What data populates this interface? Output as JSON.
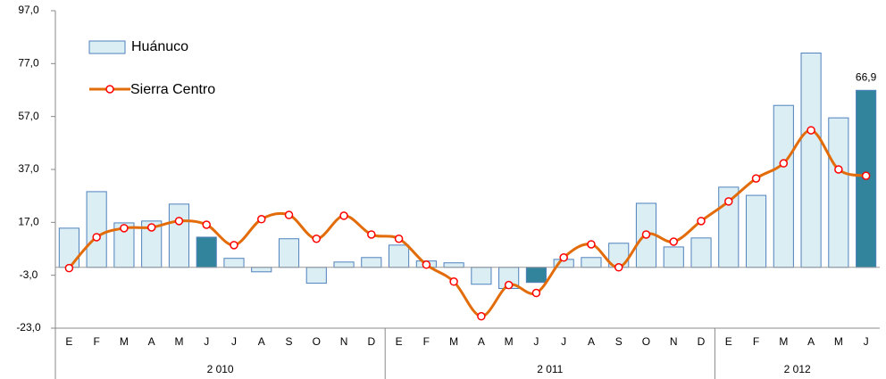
{
  "chart_data": {
    "type": "bar-line",
    "categories": [
      "E",
      "F",
      "M",
      "A",
      "M",
      "J",
      "J",
      "A",
      "S",
      "O",
      "N",
      "D",
      "E",
      "F",
      "M",
      "A",
      "M",
      "J",
      "J",
      "A",
      "S",
      "O",
      "N",
      "D",
      "E",
      "F",
      "M",
      "A",
      "M",
      "J"
    ],
    "groups": [
      "2 010",
      "2 011",
      "2 012"
    ],
    "ylim": [
      -23,
      97
    ],
    "yticks": [
      {
        "value": -23,
        "label": "-23,0"
      },
      {
        "value": -3,
        "label": "-3,0"
      },
      {
        "value": 17,
        "label": "17,0"
      },
      {
        "value": 37,
        "label": "37,0"
      },
      {
        "value": 57,
        "label": "57,0"
      },
      {
        "value": 77,
        "label": "77,0"
      },
      {
        "value": 97,
        "label": "97,0"
      }
    ],
    "legend": "top-left",
    "series": [
      {
        "name": "Huánuco",
        "kind": "bar",
        "color": "#dbeef4",
        "edge": "#4f81bd",
        "colors": [
          "#dbeef4",
          "#dbeef4",
          "#dbeef4",
          "#dbeef4",
          "#dbeef4",
          "#31849b",
          "#dbeef4",
          "#dbeef4",
          "#dbeef4",
          "#dbeef4",
          "#dbeef4",
          "#dbeef4",
          "#dbeef4",
          "#dbeef4",
          "#dbeef4",
          "#dbeef4",
          "#dbeef4",
          "#31849b",
          "#dbeef4",
          "#dbeef4",
          "#dbeef4",
          "#dbeef4",
          "#dbeef4",
          "#dbeef4",
          "#dbeef4",
          "#dbeef4",
          "#dbeef4",
          "#dbeef4",
          "#dbeef4",
          "#31849b"
        ],
        "values": [
          14.8,
          28.6,
          16.8,
          17.5,
          23.9,
          11.4,
          3.4,
          -1.7,
          10.8,
          -6,
          2,
          3.7,
          8.4,
          2.4,
          1.7,
          -6.4,
          -8,
          -5.7,
          3,
          3.7,
          9.1,
          24.2,
          7.7,
          11.1,
          30.3,
          27.2,
          61.2,
          81,
          56.5,
          66.9
        ],
        "value_labels": [
          null,
          null,
          null,
          null,
          null,
          null,
          null,
          null,
          null,
          null,
          null,
          null,
          null,
          null,
          null,
          null,
          null,
          null,
          null,
          null,
          null,
          null,
          null,
          null,
          null,
          null,
          null,
          null,
          null,
          "66,9"
        ]
      },
      {
        "name": "Sierra Centro",
        "kind": "line",
        "color": "#e36c0a",
        "marker_color": "#ff0000",
        "values": [
          -0.3,
          11.4,
          14.8,
          15.1,
          17.5,
          16.1,
          8.4,
          18.2,
          19.8,
          10.8,
          19.5,
          12.4,
          10.8,
          1,
          -5.4,
          -18.5,
          -6.7,
          -9.7,
          3.7,
          8.7,
          0,
          12.4,
          9.7,
          17.5,
          24.9,
          33.6,
          39.3,
          51.8,
          37,
          34.6
        ]
      }
    ]
  }
}
